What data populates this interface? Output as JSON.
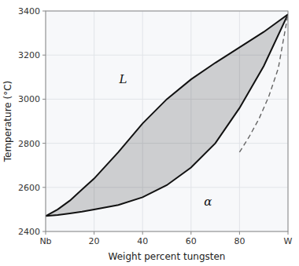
{
  "chart_data": {
    "type": "line",
    "xlabel": "Weight percent tungsten",
    "ylabel": "Temperature (°C)",
    "xlim": [
      0,
      100
    ],
    "ylim": [
      2400,
      3400
    ],
    "xticks": [
      {
        "value": 0,
        "label": "Nb"
      },
      20,
      40,
      60,
      80,
      {
        "value": 100,
        "label": "W"
      }
    ],
    "yticks": [
      2400,
      2600,
      2800,
      3000,
      3200,
      3400
    ],
    "grid": true,
    "series": [
      {
        "x": [
          0,
          5,
          10,
          15,
          20,
          30,
          40,
          50,
          60,
          70,
          80,
          90,
          100
        ],
        "values": [
          2470,
          2500,
          2540,
          2590,
          2640,
          2760,
          2890,
          3000,
          3090,
          3165,
          3235,
          3305,
          3385
        ],
        "color": "#111111",
        "line_style": "solid"
      },
      {
        "x": [
          0,
          5,
          10,
          15,
          20,
          30,
          40,
          50,
          60,
          70,
          80,
          90,
          100
        ],
        "values": [
          2470,
          2475,
          2482,
          2490,
          2500,
          2520,
          2555,
          2610,
          2690,
          2800,
          2960,
          3150,
          3385
        ],
        "color": "#111111",
        "line_style": "solid"
      },
      {
        "x": [
          80,
          84,
          88,
          92,
          96,
          100
        ],
        "values": [
          2760,
          2830,
          2910,
          3010,
          3140,
          3385
        ],
        "color": "#666666",
        "line_style": "dashed"
      }
    ],
    "annotations": [
      {
        "text": "L",
        "x": 32,
        "y": 3090
      },
      {
        "text": "α",
        "x": 67,
        "y": 2535
      }
    ]
  }
}
